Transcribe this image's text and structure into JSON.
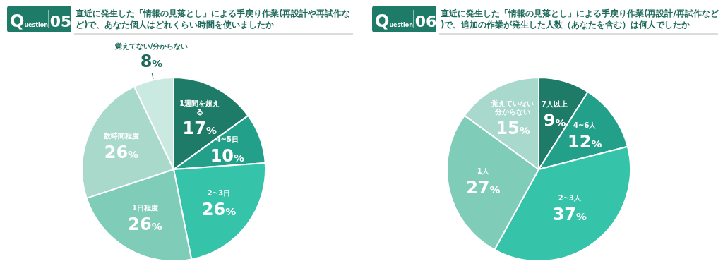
{
  "chart_data": [
    {
      "type": "pie",
      "title": "直近に発生した「情報の見落とし」による手戻り作業(再設計や再試作など)で、あなた個人はどれくらい時間を使いましたか",
      "annotations": [
        "Question",
        "05"
      ],
      "categories": [
        "1週間を超える",
        "4~5日",
        "2~3日",
        "1日程度",
        "数時間程度",
        "覚えてない/分からない"
      ],
      "values": [
        17,
        10,
        26,
        26,
        26,
        8
      ],
      "value_labels": [
        "17%",
        "10%",
        "26%",
        "26%",
        "26%",
        "8%"
      ],
      "colors": [
        "#1e7b67",
        "#23a08a",
        "#35c4aa",
        "#7fcdb8",
        "#a8d9cb",
        "#c9e9e1"
      ]
    },
    {
      "type": "pie",
      "title": "直近に発生した「情報の見落とし」による手戻り作業(再設計/再試作など)で、追加の作業が発生した人数（あなたを含む）は何人でしたか",
      "annotations": [
        "Question",
        "06"
      ],
      "categories": [
        "7人以上",
        "4~6人",
        "2~3人",
        "1人",
        "覚えていない分からない"
      ],
      "values": [
        9,
        12,
        37,
        27,
        15
      ],
      "value_labels": [
        "9%",
        "12%",
        "37%",
        "27%",
        "15%"
      ],
      "colors": [
        "#1e7b67",
        "#23a08a",
        "#35c4aa",
        "#7fcdb8",
        "#a9d8cc"
      ]
    }
  ]
}
